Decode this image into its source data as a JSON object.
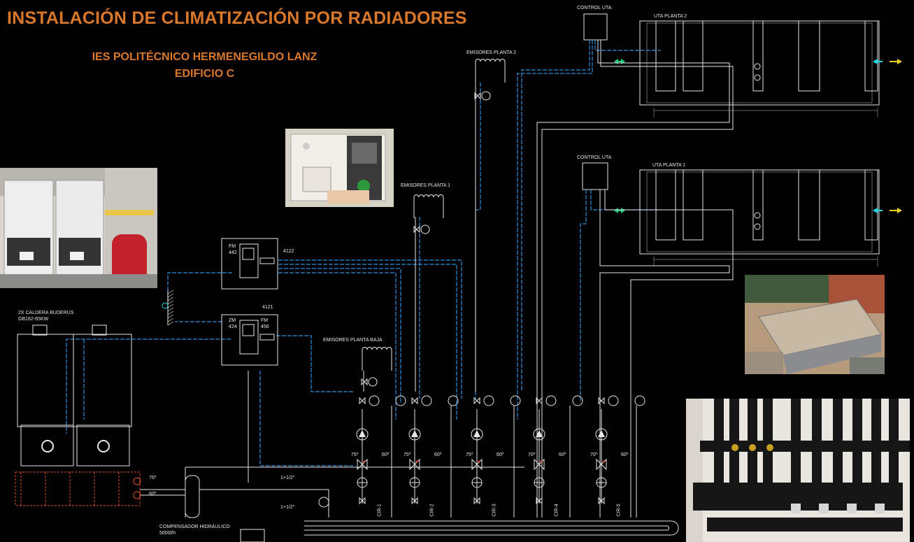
{
  "title": "INSTALACIÓN  DE CLIMATIZACIÓN  POR RADIADORES",
  "subtitle_line1": "IES POLITÉCNICO HERMENEGILDO LANZ",
  "subtitle_line2": "EDIFICIO C",
  "labels": {
    "control_uta_top": "CONTROL UTA",
    "control_uta_mid": "CONTROL UTA",
    "uta_planta_2": "UTA PLANTA 2",
    "uta_planta_1": "UTA PLANTA 1",
    "emisores_planta_2": "EMISORES PLANTA 2",
    "emisores_planta_1": "EMISORES PLANTA 1",
    "emisores_planta_baja": "EMISORES PLANTA BAJA",
    "caldera_line1": "2X CALDERA BUDERUS",
    "caldera_line2": "GB162-65KW",
    "compensador_line1": "COMPENSADOR HIDRÁULICO",
    "compensador_line2": "5000l/h",
    "module_4122": "4122",
    "module_4121": "4121",
    "fm442_a": "FM",
    "fm442_b": "442",
    "zm424_a": "ZM",
    "zm424_b": "424",
    "fm456_a": "FM",
    "fm456_b": "456",
    "temp_75_main": "75º",
    "temp_60_main": "60º",
    "size_1_1_2_a": "1+1/2\"",
    "size_1_1_2_b": "1+1/2\""
  },
  "circuits": [
    {
      "supply": "75º",
      "return": "60º",
      "tag": "CIR-1"
    },
    {
      "supply": "75º",
      "return": "60º",
      "tag": "CIR-2"
    },
    {
      "supply": "75º",
      "return": "60º",
      "tag": "CIR-3"
    },
    {
      "supply": "70º",
      "return": "60º",
      "tag": "CIR-4"
    },
    {
      "supply": "70º",
      "return": "60º",
      "tag": "CIR-5"
    }
  ],
  "colors": {
    "title": "#d9782a",
    "pipe_blue": "#2f8fe0",
    "line_white": "#e6e6e6",
    "accent_red": "#e0502a",
    "arrow_green": "#1fd17a",
    "arrow_cyan": "#27d6e8",
    "arrow_yellow": "#e8d21f"
  },
  "icons": {
    "pump": "pump-icon",
    "valve": "valve-icon",
    "thermometer": "thermometer-icon",
    "radiator": "radiator-icon",
    "photo": "photo"
  }
}
